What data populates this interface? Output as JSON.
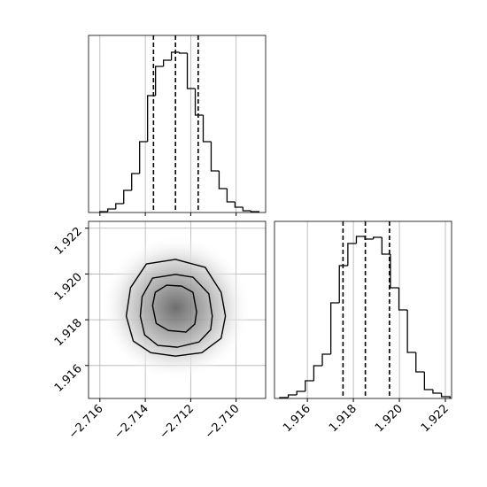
{
  "chart_data": [
    {
      "type": "histogram",
      "color": "#000000",
      "bins": [
        -2.716,
        -2.71565,
        -2.7153,
        -2.71495,
        -2.7146,
        -2.71425,
        -2.7139,
        -2.71355,
        -2.7132,
        -2.71285,
        -2.7125,
        -2.71215,
        -2.7118,
        -2.71145,
        -2.7111,
        -2.71075,
        -2.7104,
        -2.71005,
        -2.7097,
        -2.70935,
        -2.709
      ],
      "counts": [
        1,
        4,
        10,
        25,
        44,
        80,
        132,
        165,
        172,
        181,
        180,
        140,
        110,
        80,
        47,
        27,
        12,
        6,
        2,
        1
      ],
      "quantiles": [
        -2.71364,
        -2.71267,
        -2.71167
      ],
      "xlim": [
        -2.7165,
        -2.7087
      ],
      "ylim": [
        0,
        200
      ],
      "grid": true
    },
    {
      "type": "contour",
      "color": "#000000",
      "xlim": [
        -2.7165,
        -2.7087
      ],
      "ylim": [
        1.91456,
        1.9223
      ],
      "xticks": [
        -2.716,
        -2.714,
        -2.712,
        -2.71
      ],
      "xtick_labels": [
        "−2.716",
        "−2.714",
        "−2.712",
        "−2.710"
      ],
      "yticks": [
        1.916,
        1.918,
        1.92,
        1.922
      ],
      "ytick_labels": [
        "1.916",
        "1.918",
        "1.920",
        "1.922"
      ],
      "grid": true,
      "contours": [
        {
          "x": [
            -2.71047,
            -2.71066,
            -2.71136,
            -2.71267,
            -2.71395,
            -2.71465,
            -2.71484,
            -2.71453,
            -2.71376,
            -2.71267,
            -2.71151,
            -2.71066
          ],
          "y": [
            1.91816,
            1.9192,
            1.92029,
            1.92064,
            1.92044,
            1.9194,
            1.91816,
            1.91707,
            1.91656,
            1.91641,
            1.91656,
            1.91719
          ]
        },
        {
          "x": [
            -2.71105,
            -2.7112,
            -2.7119,
            -2.71267,
            -2.71368,
            -2.71414,
            -2.71422,
            -2.71403,
            -2.71345,
            -2.71259,
            -2.71163,
            -2.71112
          ],
          "y": [
            1.91816,
            1.91913,
            1.91986,
            1.91998,
            1.91982,
            1.91901,
            1.91816,
            1.91734,
            1.91688,
            1.9168,
            1.91703,
            1.91757
          ]
        },
        {
          "x": [
            -2.71174,
            -2.7119,
            -2.7124,
            -2.71306,
            -2.71356,
            -2.71368,
            -2.71352,
            -2.71298,
            -2.71221,
            -2.71182
          ],
          "y": [
            1.91835,
            1.9192,
            1.91947,
            1.91951,
            1.9192,
            1.91862,
            1.91784,
            1.91753,
            1.91746,
            1.91781
          ]
        }
      ]
    },
    {
      "type": "histogram",
      "color": "#000000",
      "bins": [
        1.9148,
        1.91517,
        1.91554,
        1.91591,
        1.91628,
        1.91665,
        1.91702,
        1.91739,
        1.91776,
        1.91813,
        1.9185,
        1.91887,
        1.91924,
        1.91961,
        1.91998,
        1.92035,
        1.92072,
        1.92109,
        1.92146,
        1.92183,
        1.9222
      ],
      "counts": [
        1,
        4,
        8,
        20,
        37,
        50,
        108,
        150,
        175,
        183,
        180,
        182,
        163,
        125,
        100,
        52,
        30,
        10,
        6,
        2
      ],
      "quantiles": [
        1.91755,
        1.91852,
        1.91957
      ],
      "xlim": [
        1.91457,
        1.92227
      ],
      "ylim": [
        0,
        200
      ],
      "xticks": [
        1.916,
        1.918,
        1.92,
        1.922
      ],
      "xtick_labels": [
        "1.916",
        "1.918",
        "1.920",
        "1.922"
      ],
      "grid": true
    }
  ]
}
